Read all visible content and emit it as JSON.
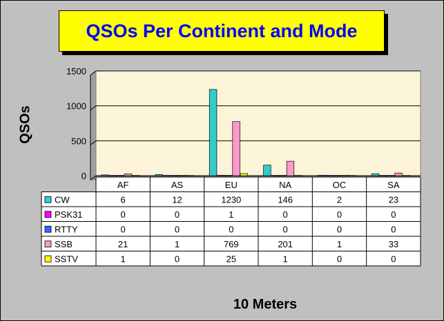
{
  "chart_data": {
    "type": "bar",
    "title": "QSOs Per Continent and Mode",
    "ylabel": "QSOs",
    "xlabel": "10 Meters",
    "categories": [
      "AF",
      "AS",
      "EU",
      "NA",
      "OC",
      "SA"
    ],
    "ylim": [
      0,
      1500
    ],
    "yticks": [
      "0",
      "500",
      "1000",
      "1500"
    ],
    "grid": true,
    "legend": "data-table",
    "series": [
      {
        "name": "CW",
        "color": "#33cccc",
        "values": [
          6,
          12,
          1230,
          146,
          2,
          23
        ]
      },
      {
        "name": "PSK31",
        "color": "#ff00ff",
        "values": [
          0,
          0,
          1,
          0,
          0,
          0
        ]
      },
      {
        "name": "RTTY",
        "color": "#3366ff",
        "values": [
          0,
          0,
          0,
          0,
          0,
          0
        ]
      },
      {
        "name": "SSB",
        "color": "#ff99cc",
        "values": [
          21,
          1,
          769,
          201,
          1,
          33
        ]
      },
      {
        "name": "SSTV",
        "color": "#ffff00",
        "values": [
          1,
          0,
          25,
          1,
          0,
          0
        ]
      }
    ]
  }
}
